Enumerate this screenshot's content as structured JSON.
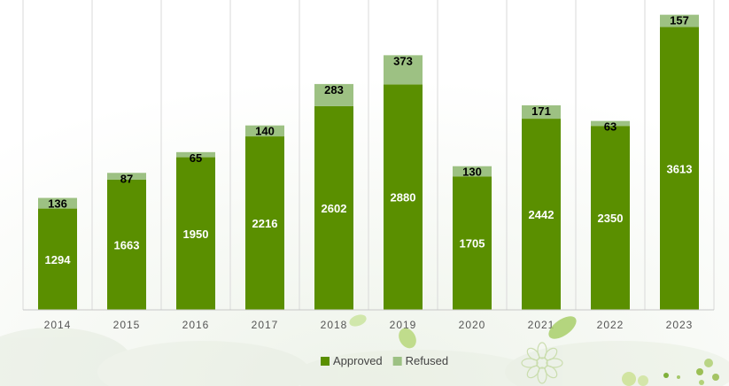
{
  "chart_data": {
    "type": "bar",
    "stacked": true,
    "categories": [
      "2014",
      "2015",
      "2016",
      "2017",
      "2018",
      "2019",
      "2020",
      "2021",
      "2022",
      "2023"
    ],
    "series": [
      {
        "name": "Approved",
        "values": [
          1294,
          1663,
          1950,
          2216,
          2602,
          2880,
          1705,
          2442,
          2350,
          3613
        ],
        "color": "#5a8f00"
      },
      {
        "name": "Refused",
        "values": [
          136,
          87,
          65,
          140,
          283,
          373,
          130,
          171,
          63,
          157
        ],
        "color": "#9dc183"
      }
    ],
    "title": "",
    "xlabel": "",
    "ylabel": "",
    "ylim": [
      0,
      3800
    ],
    "grid": "vertical",
    "legend": "bottom"
  }
}
